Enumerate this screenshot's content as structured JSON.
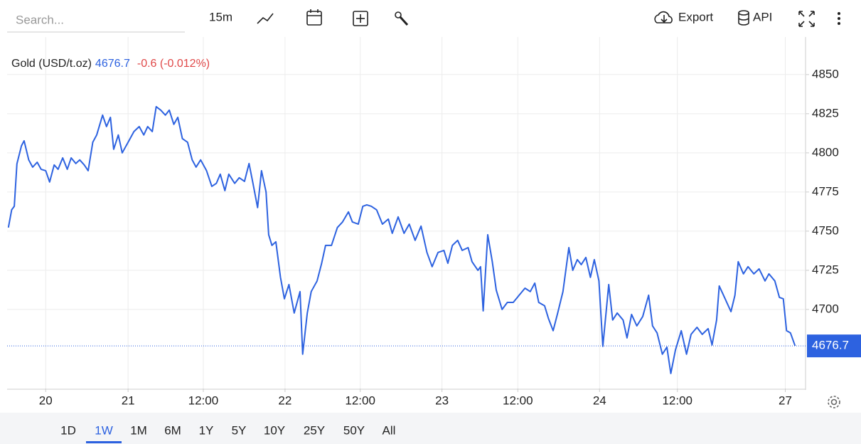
{
  "toolbar": {
    "search_placeholder": "Search...",
    "interval": "15m",
    "export": "Export",
    "api": "API"
  },
  "chart_data": {
    "type": "line",
    "title": "Gold (USD/t.oz)",
    "change": "-0.6 (-0.012%)",
    "last_price": 4676.7,
    "color": "#2d62e0",
    "grid": true,
    "x": [
      5.7,
      6.2,
      6.6,
      7.0,
      7.7,
      8.1,
      8.8,
      9.4,
      10.1,
      10.7,
      11.4,
      12.0,
      12.7,
      13.3,
      14.0,
      14.7,
      15.3,
      16.0,
      16.6,
      17.3,
      17.9,
      18.6,
      19.2,
      20.1,
      20.7,
      21.3,
      21.8,
      22.5,
      23.1,
      24.0,
      24.9,
      25.7,
      26.4,
      27.0,
      27.7,
      28.3,
      29.0,
      29.7,
      30.3,
      31.0,
      31.6,
      32.3,
      33.1,
      33.8,
      34.4,
      35.1,
      36.0,
      36.8,
      37.5,
      38.1,
      38.8,
      39.4,
      40.3,
      41.0,
      41.8,
      42.5,
      43.1,
      43.8,
      44.4,
      45.1,
      45.5,
      46.0,
      46.6,
      47.3,
      47.9,
      48.6,
      49.4,
      50.3,
      50.7,
      51.4,
      52.0,
      52.9,
      53.6,
      54.2,
      55.1,
      56.0,
      56.8,
      57.7,
      58.3,
      59.2,
      59.9,
      60.5,
      61.2,
      62.0,
      62.9,
      63.8,
      64.4,
      65.3,
      66.2,
      67.0,
      67.9,
      68.8,
      69.7,
      70.5,
      71.4,
      72.3,
      72.9,
      73.6,
      74.4,
      75.1,
      76.0,
      76.6,
      77.5,
      77.9,
      78.3,
      79.0,
      79.7,
      80.3,
      81.2,
      82.0,
      82.9,
      83.8,
      84.7,
      85.5,
      86.2,
      86.8,
      87.7,
      88.3,
      89.0,
      89.7,
      90.5,
      91.4,
      92.0,
      92.7,
      93.3,
      94.0,
      94.7,
      95.3,
      96.0,
      96.6,
      97.5,
      98.1,
      98.8,
      99.7,
      100.3,
      101.0,
      101.8,
      102.7,
      103.6,
      104.2,
      104.9,
      105.7,
      106.4,
      107.0,
      107.7,
      108.6,
      109.4,
      110.1,
      111.0,
      111.8,
      112.7,
      113.3,
      114.0,
      114.4,
      115.3,
      116.2,
      116.8,
      117.3,
      118.1,
      118.8,
      119.7,
      120.5,
      121.4,
      122.0,
      122.9,
      123.6,
      124.2,
      124.7,
      125.3,
      126.0
    ],
    "values": [
      4752.3,
      4763.6,
      4765.9,
      4793,
      4804.5,
      4807.7,
      4795.5,
      4790.9,
      4794,
      4789.5,
      4788.6,
      4781.4,
      4792.3,
      4789.5,
      4796.8,
      4789.5,
      4796.8,
      4793.2,
      4795.5,
      4792.3,
      4788.6,
      4806.8,
      4811.4,
      4824.1,
      4816.8,
      4822.7,
      4802.3,
      4811.4,
      4800,
      4806.8,
      4813.6,
      4816.8,
      4811.4,
      4816.8,
      4813.6,
      4829.5,
      4827.3,
      4824.1,
      4827.3,
      4818.2,
      4822.7,
      4809.1,
      4806.8,
      4795.5,
      4790.9,
      4795.5,
      4788.6,
      4778.6,
      4780.5,
      4786.4,
      4775.9,
      4786.4,
      4780.5,
      4784.1,
      4781.8,
      4793.2,
      4780.5,
      4765,
      4788.6,
      4775,
      4747.7,
      4740.9,
      4743.2,
      4720.5,
      4706.8,
      4715.9,
      4697.7,
      4711.4,
      4671.4,
      4697.7,
      4711.4,
      4718.2,
      4729.5,
      4740.9,
      4740.9,
      4752.3,
      4755.9,
      4762.3,
      4755.9,
      4754.5,
      4765.9,
      4766.8,
      4765.9,
      4763.6,
      4754.5,
      4757.7,
      4748.6,
      4759.1,
      4748.6,
      4754.5,
      4744.1,
      4753.2,
      4736.4,
      4727.3,
      4736.4,
      4737.7,
      4729.5,
      4740.9,
      4744.1,
      4737.7,
      4739.5,
      4730.5,
      4725,
      4727.3,
      4699.1,
      4747.7,
      4730.5,
      4712.3,
      4700,
      4704.5,
      4704.5,
      4709.1,
      4713.6,
      4711.4,
      4716.8,
      4704.5,
      4702.3,
      4694.1,
      4686.4,
      4697.7,
      4711.4,
      4739.5,
      4725,
      4731.8,
      4728.6,
      4733.2,
      4720.5,
      4731.8,
      4718.2,
      4676.4,
      4715.9,
      4693.2,
      4697.7,
      4693.2,
      4681.8,
      4696.8,
      4689.5,
      4695.5,
      4709.1,
      4689.5,
      4685,
      4671.4,
      4675.9,
      4659.1,
      4674.1,
      4686.4,
      4671.4,
      4684.1,
      4688.6,
      4684.1,
      4687.7,
      4677.3,
      4693.2,
      4715,
      4706.8,
      4698.6,
      4709.1,
      4730.5,
      4722.7,
      4727.3,
      4722.7,
      4725.9,
      4718.2,
      4722.7,
      4718.2,
      4707.7,
      4706.8,
      4686.4,
      4685,
      4676.7
    ],
    "xlim": [
      5.5,
      127.6
    ],
    "xticks": [
      {
        "value": 11.4,
        "label": "20"
      },
      {
        "value": 24,
        "label": "21"
      },
      {
        "value": 35.5,
        "label": "12:00"
      },
      {
        "value": 48,
        "label": "22"
      },
      {
        "value": 59.5,
        "label": "12:00"
      },
      {
        "value": 72,
        "label": "23"
      },
      {
        "value": 83.6,
        "label": "12:00"
      },
      {
        "value": 96.1,
        "label": "24"
      },
      {
        "value": 108,
        "label": "12:00"
      },
      {
        "value": 124.5,
        "label": "27"
      }
    ],
    "ylim": [
      4649.5,
      4874
    ],
    "yticks": [
      4700,
      4725,
      4750,
      4775,
      4800,
      4825,
      4850
    ]
  },
  "range_buttons": {
    "items": [
      "1D",
      "1W",
      "1M",
      "6M",
      "1Y",
      "5Y",
      "10Y",
      "25Y",
      "50Y",
      "All"
    ],
    "active": 1
  }
}
